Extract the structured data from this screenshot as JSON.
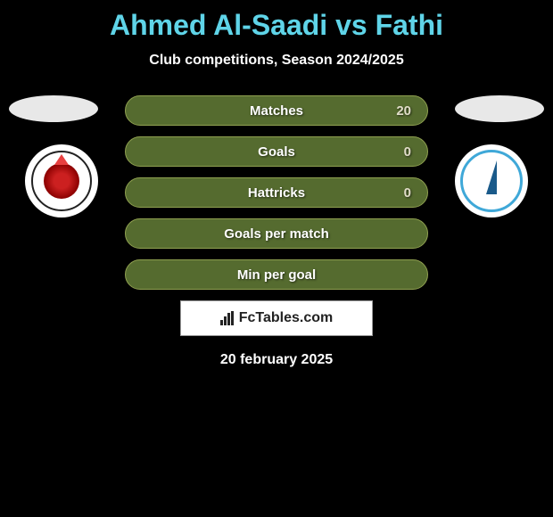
{
  "title": "Ahmed Al-Saadi vs Fathi",
  "subtitle": "Club competitions, Season 2024/2025",
  "stats": [
    {
      "label": "Matches",
      "value": "20"
    },
    {
      "label": "Goals",
      "value": "0"
    },
    {
      "label": "Hattricks",
      "value": "0"
    },
    {
      "label": "Goals per match",
      "value": ""
    },
    {
      "label": "Min per goal",
      "value": ""
    }
  ],
  "footer_brand": "FcTables.com",
  "date": "20 february 2025",
  "colors": {
    "title": "#5fd4e8",
    "stat_bg": "#556b2f",
    "stat_border": "#8fa050",
    "badge_right_ring": "#3fa8d8"
  }
}
